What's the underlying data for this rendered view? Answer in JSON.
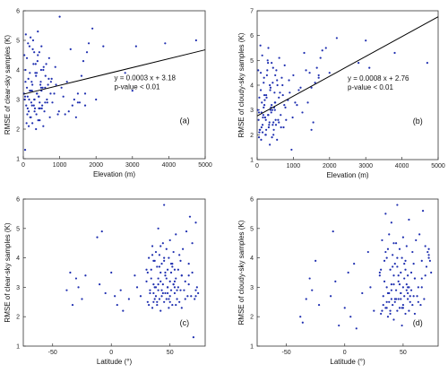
{
  "colors": {
    "points": "#1f2fb0",
    "line": "#000000",
    "axis": "#333333"
  },
  "chart_data": [
    {
      "id": "a",
      "type": "scatter",
      "panel_label": "(a)",
      "xlabel": "Elevation (m)",
      "ylabel": "RMSE of clear-sky samples (K)",
      "xlim": [
        0,
        5000
      ],
      "ylim": [
        1,
        6
      ],
      "xticks": [
        0,
        1000,
        2000,
        3000,
        4000,
        5000
      ],
      "yticks": [
        1,
        2,
        3,
        4,
        5,
        6
      ],
      "grid": false,
      "fit": {
        "slope": 0.0003,
        "intercept": 3.18,
        "x": [
          0,
          5000
        ]
      },
      "annotations": [
        "y = 0.0003 x + 3.18",
        "p-value < 0.01"
      ],
      "points_x": [
        20,
        40,
        60,
        80,
        100,
        120,
        150,
        180,
        200,
        220,
        250,
        280,
        300,
        320,
        350,
        380,
        400,
        420,
        450,
        480,
        500,
        520,
        550,
        600,
        650,
        700,
        750,
        800,
        900,
        1000,
        1100,
        1200,
        1300,
        1400,
        1500,
        1600,
        1700,
        1800,
        2000,
        2200,
        2800,
        3000,
        3100,
        3900,
        4750,
        30,
        70,
        110,
        140,
        170,
        210,
        240,
        270,
        310,
        340,
        370,
        410,
        440,
        470,
        510,
        560,
        610,
        660,
        710,
        760,
        850,
        950,
        1050,
        1250,
        1450,
        1550,
        1650,
        1750,
        60,
        90,
        130,
        160,
        190,
        230,
        260,
        290,
        330,
        360,
        390,
        430,
        460,
        490,
        530,
        580,
        630,
        680,
        730,
        780,
        880,
        980,
        1150,
        1350,
        1500,
        1700,
        1900,
        50,
        100,
        150,
        200,
        250,
        300,
        350,
        400,
        450,
        500,
        550,
        600,
        50,
        120,
        180,
        240,
        310,
        370,
        430,
        490,
        560
      ],
      "points_y": [
        3.2,
        3.0,
        3.6,
        2.8,
        3.4,
        3.1,
        2.6,
        3.9,
        3.3,
        2.9,
        3.5,
        4.2,
        3.0,
        2.7,
        3.8,
        3.2,
        4.5,
        3.1,
        2.9,
        3.6,
        3.3,
        2.8,
        4.0,
        3.4,
        3.0,
        3.7,
        3.2,
        2.9,
        3.5,
        5.8,
        3.1,
        3.6,
        4.7,
        3.0,
        2.9,
        3.8,
        3.2,
        4.9,
        3.0,
        4.8,
        3.9,
        3.3,
        4.8,
        4.9,
        5.0,
        4.5,
        5.2,
        2.5,
        3.7,
        4.8,
        2.4,
        3.3,
        5.0,
        2.6,
        4.2,
        3.9,
        2.3,
        4.6,
        3.5,
        2.7,
        4.1,
        3.8,
        2.9,
        4.4,
        3.6,
        3.2,
        2.5,
        3.4,
        2.6,
        2.4,
        2.9,
        4.3,
        4.6,
        4.0,
        2.2,
        4.9,
        3.0,
        2.4,
        3.6,
        4.7,
        2.8,
        3.9,
        2.5,
        4.3,
        3.1,
        2.7,
        4.0,
        3.4,
        2.6,
        4.2,
        3.5,
        2.4,
        3.7,
        4.1,
        2.6,
        2.5,
        2.8,
        3.2,
        2.8,
        5.4,
        1.3,
        4.4,
        2.1,
        5.1,
        2.2,
        4.6,
        2.0,
        5.3,
        2.3,
        4.8,
        2.1,
        2.9,
        3.1,
        2.7,
        3.3,
        2.8,
        3.0,
        3.2,
        2.7,
        3.4
      ]
    },
    {
      "id": "b",
      "type": "scatter",
      "panel_label": "(b)",
      "xlabel": "Elevation (m)",
      "ylabel": "RMSE of cloudy-sky samples (K)",
      "xlim": [
        0,
        5000
      ],
      "ylim": [
        1,
        7
      ],
      "xticks": [
        0,
        1000,
        2000,
        3000,
        4000,
        5000
      ],
      "yticks": [
        1,
        2,
        3,
        4,
        5,
        6,
        7
      ],
      "grid": false,
      "fit": {
        "slope": 0.0008,
        "intercept": 2.76,
        "x": [
          0,
          5000
        ]
      },
      "annotations": [
        "y = 0.0008 x + 2.76",
        "p-value < 0.01"
      ],
      "points_x": [
        20,
        40,
        60,
        80,
        100,
        120,
        150,
        180,
        200,
        220,
        250,
        280,
        300,
        320,
        350,
        380,
        400,
        420,
        450,
        480,
        500,
        520,
        550,
        600,
        650,
        700,
        750,
        800,
        900,
        1000,
        1100,
        1200,
        1300,
        1400,
        1500,
        1600,
        1700,
        1800,
        2000,
        2200,
        2800,
        3000,
        3100,
        3800,
        4700,
        30,
        70,
        110,
        140,
        170,
        210,
        240,
        270,
        310,
        340,
        370,
        410,
        440,
        470,
        510,
        560,
        610,
        660,
        710,
        760,
        850,
        950,
        1050,
        1250,
        1450,
        1550,
        1650,
        1750,
        60,
        90,
        130,
        160,
        190,
        230,
        260,
        290,
        330,
        360,
        390,
        430,
        460,
        490,
        530,
        580,
        630,
        680,
        730,
        780,
        880,
        980,
        1150,
        1350,
        1500,
        1700,
        1900,
        50,
        100,
        150,
        200,
        250,
        300,
        350,
        400,
        450,
        500,
        550,
        600,
        50,
        120,
        180,
        240,
        310,
        370,
        430,
        490,
        560
      ],
      "points_y": [
        3.0,
        2.6,
        3.5,
        2.2,
        3.8,
        2.9,
        2.4,
        4.1,
        3.2,
        2.7,
        3.6,
        4.6,
        2.8,
        2.3,
        4.0,
        3.1,
        4.9,
        3.0,
        2.5,
        3.7,
        3.3,
        2.4,
        4.2,
        3.5,
        2.8,
        4.0,
        3.2,
        2.6,
        3.7,
        4.4,
        3.2,
        3.9,
        5.3,
        3.3,
        2.2,
        4.1,
        4.3,
        5.4,
        4.5,
        5.9,
        4.9,
        5.8,
        4.7,
        5.3,
        4.9,
        4.6,
        2.2,
        1.8,
        5.2,
        2.8,
        3.4,
        2.0,
        4.4,
        5.5,
        2.5,
        3.9,
        1.9,
        4.7,
        3.1,
        2.6,
        4.0,
        5.1,
        2.3,
        3.6,
        4.8,
        3.4,
        1.4,
        3.3,
        2.9,
        4.5,
        2.5,
        4.7,
        5.1,
        2.1,
        5.6,
        3.3,
        2.7,
        4.3,
        2.0,
        3.5,
        5.0,
        2.4,
        3.8,
        2.9,
        4.1,
        2.2,
        3.0,
        4.6,
        2.6,
        3.7,
        4.3,
        2.3,
        3.1,
        4.2,
        2.7,
        3.8,
        4.6,
        3.9,
        4.4,
        5.5,
        1.9,
        4.5,
        2.1,
        3.6,
        2.2,
        4.9,
        1.6,
        3.2,
        2.0,
        4.4,
        1.8,
        2.5,
        2.9,
        2.3,
        3.1,
        2.6,
        2.8,
        3.0,
        2.4,
        3.3
      ]
    },
    {
      "id": "c",
      "type": "scatter",
      "panel_label": "(c)",
      "xlabel": "Latitude (°)",
      "ylabel": "RMSE of clear-sky samples (K)",
      "xlim": [
        -75,
        80
      ],
      "ylim": [
        1,
        6
      ],
      "xticks": [
        -50,
        0,
        50
      ],
      "yticks": [
        1,
        2,
        3,
        4,
        5,
        6
      ],
      "grid": false,
      "points_x": [
        -38,
        -35,
        -33,
        -30,
        -28,
        -25,
        -22,
        -12,
        -10,
        -8,
        -5,
        0,
        3,
        5,
        8,
        10,
        15,
        20,
        22,
        25,
        30,
        31,
        32,
        33,
        34,
        35,
        35,
        36,
        36,
        37,
        37,
        38,
        38,
        39,
        39,
        40,
        40,
        40,
        41,
        41,
        42,
        42,
        43,
        43,
        44,
        44,
        45,
        45,
        45,
        46,
        46,
        47,
        47,
        48,
        48,
        49,
        49,
        50,
        50,
        50,
        51,
        51,
        52,
        52,
        53,
        53,
        54,
        54,
        55,
        55,
        56,
        57,
        58,
        59,
        60,
        62,
        64,
        66,
        68,
        70,
        72,
        74,
        31,
        33,
        35,
        37,
        39,
        41,
        43,
        45,
        47,
        49,
        51,
        53,
        55,
        57,
        59,
        61,
        63,
        65,
        67,
        69,
        71,
        73,
        32,
        34,
        36,
        38,
        40,
        42,
        44,
        46,
        48,
        50,
        52,
        54,
        56,
        58,
        60,
        63,
        66,
        69,
        72,
        30,
        36,
        42,
        48,
        54,
        60,
        66,
        72
      ],
      "points_y": [
        2.9,
        3.5,
        2.4,
        3.3,
        3.0,
        2.6,
        3.4,
        4.7,
        3.1,
        4.9,
        2.8,
        3.5,
        2.7,
        2.4,
        2.9,
        2.2,
        2.6,
        3.4,
        3.0,
        2.7,
        3.2,
        2.5,
        4.0,
        2.9,
        3.6,
        2.3,
        4.4,
        3.1,
        2.8,
        3.9,
        2.6,
        4.2,
        3.0,
        2.4,
        3.7,
        2.9,
        5.0,
        3.3,
        2.6,
        4.1,
        3.5,
        2.2,
        3.8,
        2.7,
        4.5,
        3.1,
        2.5,
        3.9,
        5.8,
        2.8,
        3.4,
        4.3,
        2.6,
        3.0,
        3.6,
        2.3,
        4.0,
        3.2,
        2.7,
        4.6,
        3.5,
        2.9,
        3.8,
        2.4,
        4.2,
        3.1,
        2.8,
        3.6,
        3.3,
        4.8,
        2.6,
        3.0,
        2.5,
        3.9,
        3.4,
        2.9,
        4.9,
        3.1,
        2.7,
        1.3,
        5.2,
        2.8,
        3.5,
        2.8,
        4.1,
        3.0,
        2.5,
        3.7,
        2.9,
        4.0,
        3.3,
        2.6,
        3.8,
        3.1,
        2.4,
        3.6,
        2.9,
        4.3,
        3.2,
        2.7,
        5.4,
        3.5,
        2.6,
        3.0,
        2.4,
        3.3,
        3.9,
        2.7,
        3.1,
        4.4,
        2.8,
        3.5,
        3.0,
        2.5,
        3.7,
        3.2,
        2.9,
        4.1,
        3.4,
        2.6,
        3.8,
        4.5,
        2.9,
        3.6,
        2.5,
        3.2,
        2.8,
        3.0,
        2.3,
        3.4,
        2.7
      ]
    },
    {
      "id": "d",
      "type": "scatter",
      "panel_label": "(d)",
      "xlabel": "Latitude (°)",
      "ylabel": "RMSE of cloudy-sky samples (K)",
      "xlim": [
        -75,
        80
      ],
      "ylim": [
        1,
        6
      ],
      "xticks": [
        -50,
        0,
        50
      ],
      "yticks": [
        1,
        2,
        3,
        4,
        5,
        6
      ],
      "grid": false,
      "points_x": [
        -38,
        -36,
        -33,
        -30,
        -28,
        -25,
        -22,
        -12,
        -10,
        -8,
        -5,
        0,
        3,
        5,
        8,
        10,
        15,
        20,
        22,
        25,
        30,
        31,
        32,
        33,
        34,
        35,
        35,
        36,
        36,
        37,
        37,
        38,
        38,
        39,
        39,
        40,
        40,
        40,
        41,
        41,
        42,
        42,
        43,
        43,
        44,
        44,
        45,
        45,
        45,
        46,
        46,
        47,
        47,
        48,
        48,
        49,
        49,
        50,
        50,
        50,
        51,
        51,
        52,
        52,
        53,
        53,
        54,
        54,
        55,
        55,
        56,
        57,
        58,
        59,
        60,
        62,
        64,
        66,
        68,
        70,
        72,
        74,
        31,
        33,
        35,
        37,
        39,
        41,
        43,
        45,
        47,
        49,
        51,
        53,
        55,
        57,
        59,
        61,
        63,
        65,
        67,
        69,
        71,
        73,
        32,
        34,
        36,
        38,
        40,
        42,
        44,
        46,
        48,
        50,
        52,
        54,
        56,
        58,
        60,
        63,
        66,
        69,
        72,
        30,
        36,
        42,
        48,
        54,
        60,
        66,
        72
      ],
      "points_y": [
        2.0,
        1.8,
        2.6,
        3.3,
        2.9,
        3.9,
        2.4,
        2.7,
        4.9,
        3.2,
        1.7,
        2.3,
        3.5,
        2.0,
        3.8,
        1.6,
        2.8,
        4.2,
        3.0,
        2.2,
        3.4,
        2.1,
        4.6,
        2.7,
        3.9,
        2.3,
        5.5,
        3.0,
        2.5,
        4.3,
        2.0,
        4.8,
        2.8,
        2.2,
        3.6,
        2.6,
        5.2,
        3.1,
        2.4,
        4.1,
        3.4,
        1.9,
        3.8,
        2.5,
        4.5,
        2.9,
        2.2,
        3.7,
        5.8,
        2.6,
        3.2,
        4.3,
        2.3,
        2.8,
        3.5,
        1.7,
        4.0,
        3.0,
        2.4,
        4.7,
        3.3,
        2.7,
        3.9,
        2.1,
        4.4,
        3.1,
        2.6,
        3.4,
        3.0,
        5.3,
        2.5,
        2.9,
        2.4,
        3.8,
        3.3,
        2.7,
        4.8,
        3.0,
        2.6,
        3.7,
        4.1,
        3.5,
        3.6,
        2.4,
        4.2,
        2.8,
        2.1,
        3.7,
        2.6,
        4.0,
        3.1,
        2.3,
        3.8,
        2.9,
        2.2,
        3.5,
        2.7,
        4.6,
        3.0,
        2.4,
        5.6,
        3.4,
        4.2,
        3.9,
        2.2,
        3.2,
        4.0,
        2.5,
        2.9,
        4.5,
        2.6,
        3.4,
        2.8,
        2.3,
        3.6,
        3.0,
        2.7,
        4.2,
        3.3,
        2.5,
        3.9,
        4.4,
        4.0,
        3.5,
        2.3,
        3.1,
        2.6,
        2.8,
        2.1,
        3.3,
        4.3
      ]
    }
  ]
}
